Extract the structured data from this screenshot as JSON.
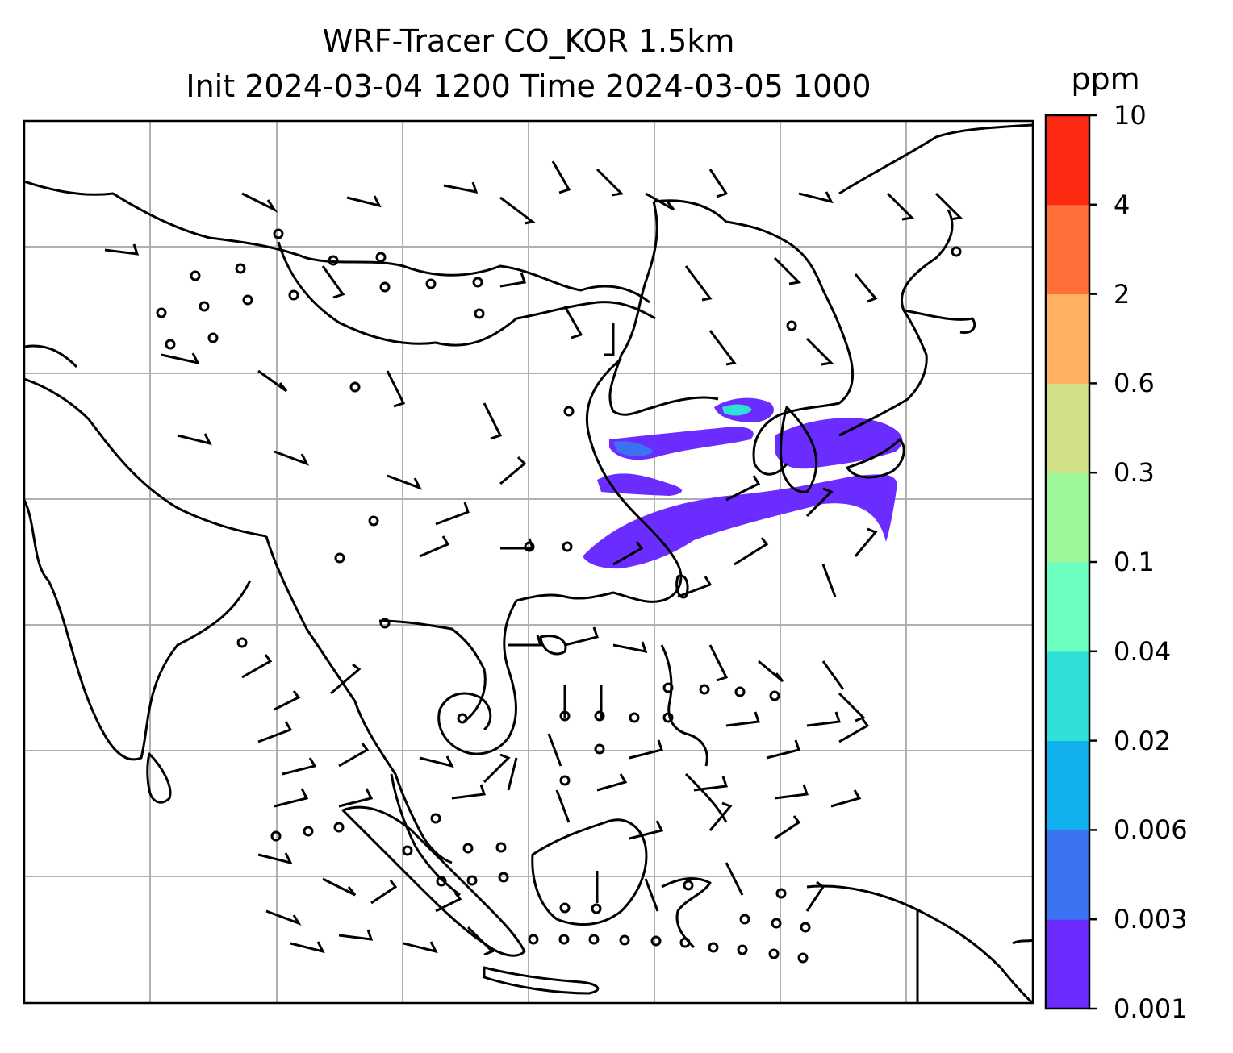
{
  "map": {
    "title": "WRF-Tracer CO_KOR 1.5km",
    "subtitle": "Init 2024-03-04 1200 Time 2024-03-05 1000",
    "variable": "CO tracer",
    "gridlines": true
  },
  "colorbar": {
    "unit": "ppm",
    "levels": [
      "0.001",
      "0.003",
      "0.006",
      "0.02",
      "0.04",
      "0.1",
      "0.3",
      "0.6",
      "2",
      "4",
      "10"
    ],
    "colors": [
      "#6a2cff",
      "#3a73f2",
      "#10b0ee",
      "#2ee0d6",
      "#6cffc0",
      "#9cf89a",
      "#cfe184",
      "#ffb060",
      "#ff7038",
      "#ff2a14"
    ]
  },
  "colors": {
    "coast": "#000000",
    "grid": "#b0b0b0",
    "plume": "#6a2cff",
    "plume_mid": "#3a73f2",
    "plume_hi": "#2ee0d6"
  }
}
